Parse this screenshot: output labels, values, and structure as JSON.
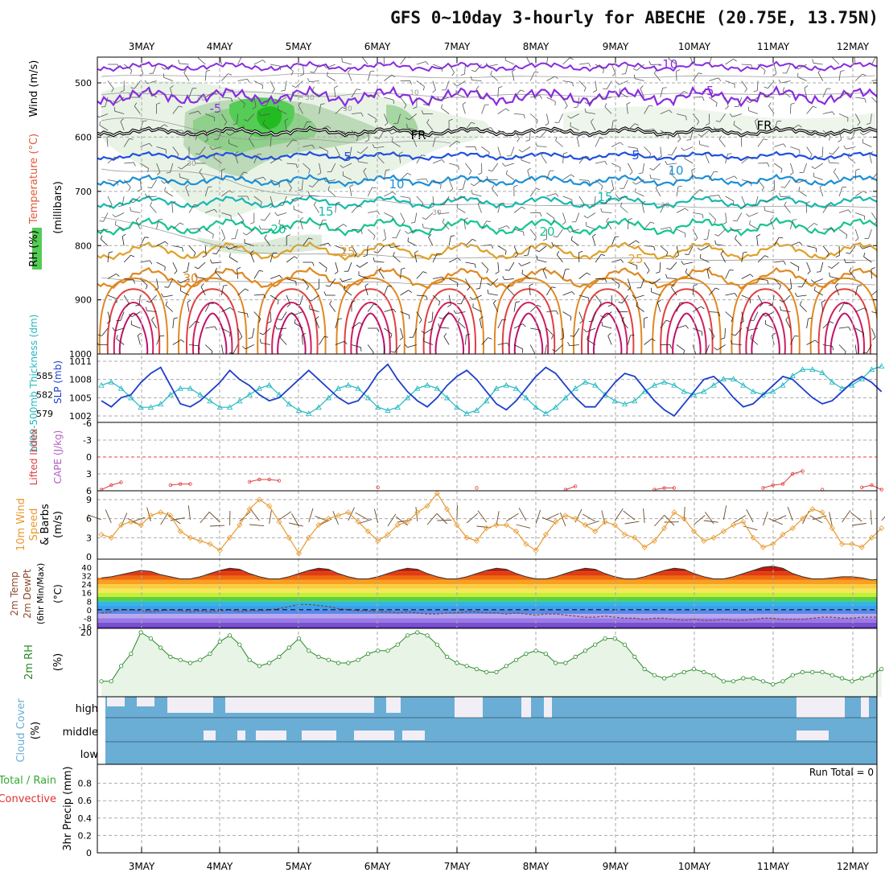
{
  "title": "GFS 0~10day 3-hourly for ABECHE (20.75E, 13.75N)",
  "colors": {
    "temperature_label": "#e05a3a",
    "rh_green": "#33cc33",
    "slp_line": "#1f3fcc",
    "thickness_line": "#22b8c0",
    "lifted_index": "#e04040",
    "cape_label": "#b060c0",
    "wind_speed": "#e89a30",
    "rh2m": "#2a8a2a",
    "cloud_fill": "#6aaed6",
    "cloud_clear": "#f2eef6",
    "precip_total": "#33aa33",
    "precip_conv": "#e03030"
  },
  "chart_data": [
    {
      "type": "line",
      "panel": "upper-air cross-section",
      "x_ticks": [
        "3MAY",
        "4MAY",
        "5MAY",
        "6MAY",
        "7MAY",
        "8MAY",
        "9MAY",
        "10MAY",
        "11MAY",
        "12MAY"
      ],
      "ylabel": "(millibars)",
      "y_title_parts": [
        "RH (%)",
        "Temperature (°C)",
        "Wind (m/s)"
      ],
      "yticks": [
        "500",
        "600",
        "700",
        "800",
        "900",
        "1000"
      ],
      "ylim": [
        1000,
        455
      ],
      "contour_labels": [
        "-10",
        "-5",
        "-5",
        "FR",
        "FR",
        "5",
        "5",
        "10",
        "10",
        "15",
        "15",
        "20",
        "20",
        "25",
        "25",
        "30",
        "30",
        "30",
        "30",
        "10",
        "10",
        "30",
        "30"
      ],
      "isotherms": [
        {
          "name": "-10",
          "level": 470
        },
        {
          "name": "-5",
          "level": 525
        },
        {
          "name": "0",
          "level": 590
        },
        {
          "name": "5",
          "level": 635
        },
        {
          "name": "10",
          "level": 680
        },
        {
          "name": "15",
          "level": 720
        },
        {
          "name": "20",
          "level": 765
        },
        {
          "name": "25",
          "level": 810
        },
        {
          "name": "30",
          "level": 860
        }
      ]
    },
    {
      "type": "line",
      "panel": "thickness and sea-level pressure",
      "ylabel_left": "1000-500mb Thickness (dm)",
      "ylabel_right": "SLP (mb)",
      "yticks_left": [
        "585",
        "582",
        "579"
      ],
      "yticks_right": [
        "1011",
        "1008",
        "1005",
        "1002"
      ],
      "series": [
        {
          "name": "SLP",
          "values": [
            1004.5,
            1003.5,
            1005,
            1005.5,
            1007.5,
            1009,
            1010,
            1007,
            1004,
            1003.5,
            1004.5,
            1006,
            1007.5,
            1009.5,
            1008,
            1007,
            1005.5,
            1004.5,
            1005,
            1006.5,
            1008,
            1009.5,
            1008,
            1006.5,
            1005,
            1004,
            1004.5,
            1006.5,
            1009,
            1010.5,
            1008,
            1006,
            1004.5,
            1003.5,
            1005,
            1007,
            1008.5,
            1009.5,
            1008,
            1006,
            1004,
            1003,
            1004.5,
            1006.5,
            1008.5,
            1010,
            1009,
            1007,
            1005,
            1003.5,
            1003.5,
            1005.5,
            1007.5,
            1009,
            1008.5,
            1006.5,
            1004.5,
            1003,
            1002,
            1004,
            1006,
            1008,
            1008.5,
            1007,
            1005,
            1003.5,
            1004,
            1005.5,
            1007,
            1008.5,
            1008,
            1006.5,
            1005,
            1004,
            1004.5,
            1006,
            1007.5,
            1008.5,
            1007.5,
            1006
          ]
        },
        {
          "name": "Thickness",
          "values": [
            583.5,
            584,
            583,
            581.5,
            580,
            580,
            580.5,
            582,
            583,
            583,
            582,
            581,
            580,
            580,
            581,
            582,
            583,
            583.5,
            582,
            580.5,
            579.5,
            579,
            580,
            581.5,
            583,
            583.5,
            583,
            581.5,
            580,
            579.5,
            580,
            581.5,
            583,
            583.5,
            583,
            581.5,
            580,
            579,
            579.5,
            581,
            583,
            583.5,
            583,
            581.5,
            580,
            579,
            580,
            581.5,
            583,
            584,
            583.5,
            582,
            581,
            580.5,
            581,
            582.5,
            583.5,
            584,
            583.5,
            582.5,
            582,
            582.5,
            583.5,
            584.5,
            584.5,
            583.5,
            582.5,
            582,
            582.5,
            583.5,
            585,
            586,
            586,
            585.5,
            584,
            583,
            583.5,
            584.5,
            586,
            586.5
          ]
        }
      ]
    },
    {
      "type": "line",
      "panel": "lifted index and CAPE",
      "ylabel_left": "Lifted Index",
      "ylabel_mid": "CAPE (J/kg)",
      "yticks": [
        "-6",
        "-3",
        "0",
        "3",
        "6"
      ],
      "ylim": [
        6,
        -6
      ],
      "series": [
        {
          "name": "Lifted Index",
          "values": [
            5.8,
            5,
            4.5,
            null,
            null,
            null,
            null,
            5,
            4.8,
            4.8,
            null,
            null,
            null,
            null,
            null,
            4.4,
            4,
            4,
            4.2,
            null,
            null,
            null,
            null,
            null,
            null,
            null,
            null,
            null,
            5.4,
            null,
            null,
            null,
            null,
            null,
            null,
            null,
            null,
            null,
            5.5,
            null,
            null,
            null,
            null,
            null,
            null,
            null,
            null,
            5.8,
            5.2,
            null,
            null,
            null,
            null,
            null,
            null,
            null,
            5.8,
            5.5,
            5.5,
            null,
            null,
            null,
            null,
            null,
            null,
            null,
            null,
            5.5,
            5,
            4.8,
            3,
            2.5,
            null,
            5.8,
            null,
            null,
            null,
            5.4,
            5,
            5.8
          ]
        }
      ]
    },
    {
      "type": "line",
      "panel": "10m wind",
      "ylabel": "10m Wind Speed & Barbs (m/s)",
      "yticks": [
        "0",
        "3",
        "6",
        "9"
      ],
      "ylim": [
        0,
        10.5
      ],
      "series": [
        {
          "name": "Speed",
          "values": [
            3.5,
            3,
            5,
            5.5,
            5,
            6.5,
            7,
            6.5,
            4,
            3,
            2.5,
            2,
            1,
            3,
            5,
            7.5,
            9,
            8,
            5.5,
            3,
            0.5,
            3,
            5,
            6,
            6.5,
            7,
            5.5,
            4,
            2.5,
            3.5,
            5,
            5.5,
            7,
            8,
            10,
            7.5,
            5,
            3,
            2.5,
            4.5,
            5,
            5,
            4,
            2,
            1,
            3.5,
            5.5,
            6.5,
            6,
            5,
            4,
            5.5,
            5,
            3.5,
            3,
            1.5,
            2.5,
            4.5,
            7,
            6,
            4,
            2.5,
            3,
            4,
            5,
            5.5,
            3,
            1.5,
            2,
            3.5,
            4.5,
            6,
            7.5,
            7,
            4.5,
            2,
            2,
            1.5,
            3,
            4.5
          ]
        }
      ]
    },
    {
      "type": "area",
      "panel": "2m temperature and dew point",
      "ylabel": "2m Temp 2m DewPt (6hr Min/Max) (°C)",
      "yticks": [
        "40",
        "32",
        "24",
        "16",
        "8",
        "0",
        "-8",
        "-16"
      ],
      "ylim": [
        -18,
        42
      ],
      "series": [
        {
          "name": "2m Temp",
          "values": [
            30,
            31,
            33,
            35,
            37,
            36,
            33,
            31,
            29,
            29,
            31,
            34,
            37,
            39,
            38,
            34,
            31,
            29,
            29,
            31,
            34,
            37,
            39,
            38,
            34,
            31,
            29,
            29,
            31,
            34,
            37,
            39,
            38,
            34,
            31,
            29,
            29,
            31,
            34,
            37,
            39,
            38,
            34,
            31,
            29,
            29,
            31,
            34,
            37,
            39,
            38,
            34,
            31,
            29,
            29,
            31,
            34,
            37,
            39,
            38,
            34,
            31,
            29,
            29,
            31,
            34,
            37,
            40,
            41,
            39,
            34,
            31,
            29,
            29,
            30,
            31,
            31,
            30,
            28,
            29
          ]
        },
        {
          "name": "2m DewPt",
          "values": [
            -3,
            -2,
            0,
            0,
            -1,
            -2,
            -1,
            0,
            -1,
            -2,
            -1,
            -2,
            -1,
            0,
            -2,
            -1,
            -1,
            0,
            1,
            3,
            5,
            5,
            4,
            3,
            1,
            0,
            -1,
            -1,
            -2,
            -2,
            -3,
            -2,
            -3,
            -4,
            -4,
            -3,
            -3,
            -2,
            -2,
            -3,
            -3,
            -4,
            -3,
            -4,
            -5,
            -4,
            -4,
            -5,
            -6,
            -7,
            -7,
            -6,
            -7,
            -8,
            -8,
            -9,
            -8,
            -8,
            -9,
            -10,
            -9,
            -10,
            -10,
            -9,
            -10,
            -10,
            -9,
            -8,
            -8,
            -9,
            -9,
            -9,
            -8,
            -7,
            -7,
            -8,
            -8,
            -7,
            -7,
            -7
          ]
        }
      ]
    },
    {
      "type": "area",
      "panel": "2m relative humidity",
      "ylabel": "2m RH (%)",
      "yticks": [
        "20"
      ],
      "ylim": [
        0,
        21
      ],
      "series": [
        {
          "name": "2m RH",
          "values": [
            4,
            4,
            9,
            13,
            20,
            18,
            15,
            12,
            11,
            10,
            11,
            13,
            17,
            19,
            16,
            11,
            9,
            10,
            12,
            15,
            18,
            14,
            12,
            11,
            10,
            10,
            11,
            13,
            14,
            14,
            16,
            19,
            20,
            19,
            16,
            12,
            10,
            9,
            8,
            7,
            7,
            9,
            11,
            13,
            14,
            13,
            10,
            10,
            12,
            14,
            16,
            18,
            18,
            16,
            12,
            8,
            6,
            5,
            6,
            7,
            8,
            7,
            6,
            4,
            4,
            5,
            5,
            4,
            3,
            4,
            6,
            7,
            7,
            7,
            6,
            5,
            4,
            5,
            6,
            8
          ]
        }
      ]
    },
    {
      "type": "heatmap",
      "panel": "cloud cover",
      "ylabel": "Cloud Cover (%)",
      "row_labels": [
        "high",
        "middle",
        "low"
      ]
    },
    {
      "type": "bar",
      "panel": "3hr precipitation",
      "ylabel_left": "Total / Rain",
      "ylabel_left2": "Convective",
      "ylabel": "3hr Precip (mm)",
      "yticks": [
        "0",
        "0.2",
        "0.4",
        "0.6",
        "0.8"
      ],
      "ylim": [
        0,
        1
      ],
      "run_total": "Run Total = 0",
      "x_ticks": [
        "3MAY",
        "4MAY",
        "5MAY",
        "6MAY",
        "7MAY",
        "8MAY",
        "9MAY",
        "10MAY",
        "11MAY",
        "12MAY"
      ]
    }
  ]
}
